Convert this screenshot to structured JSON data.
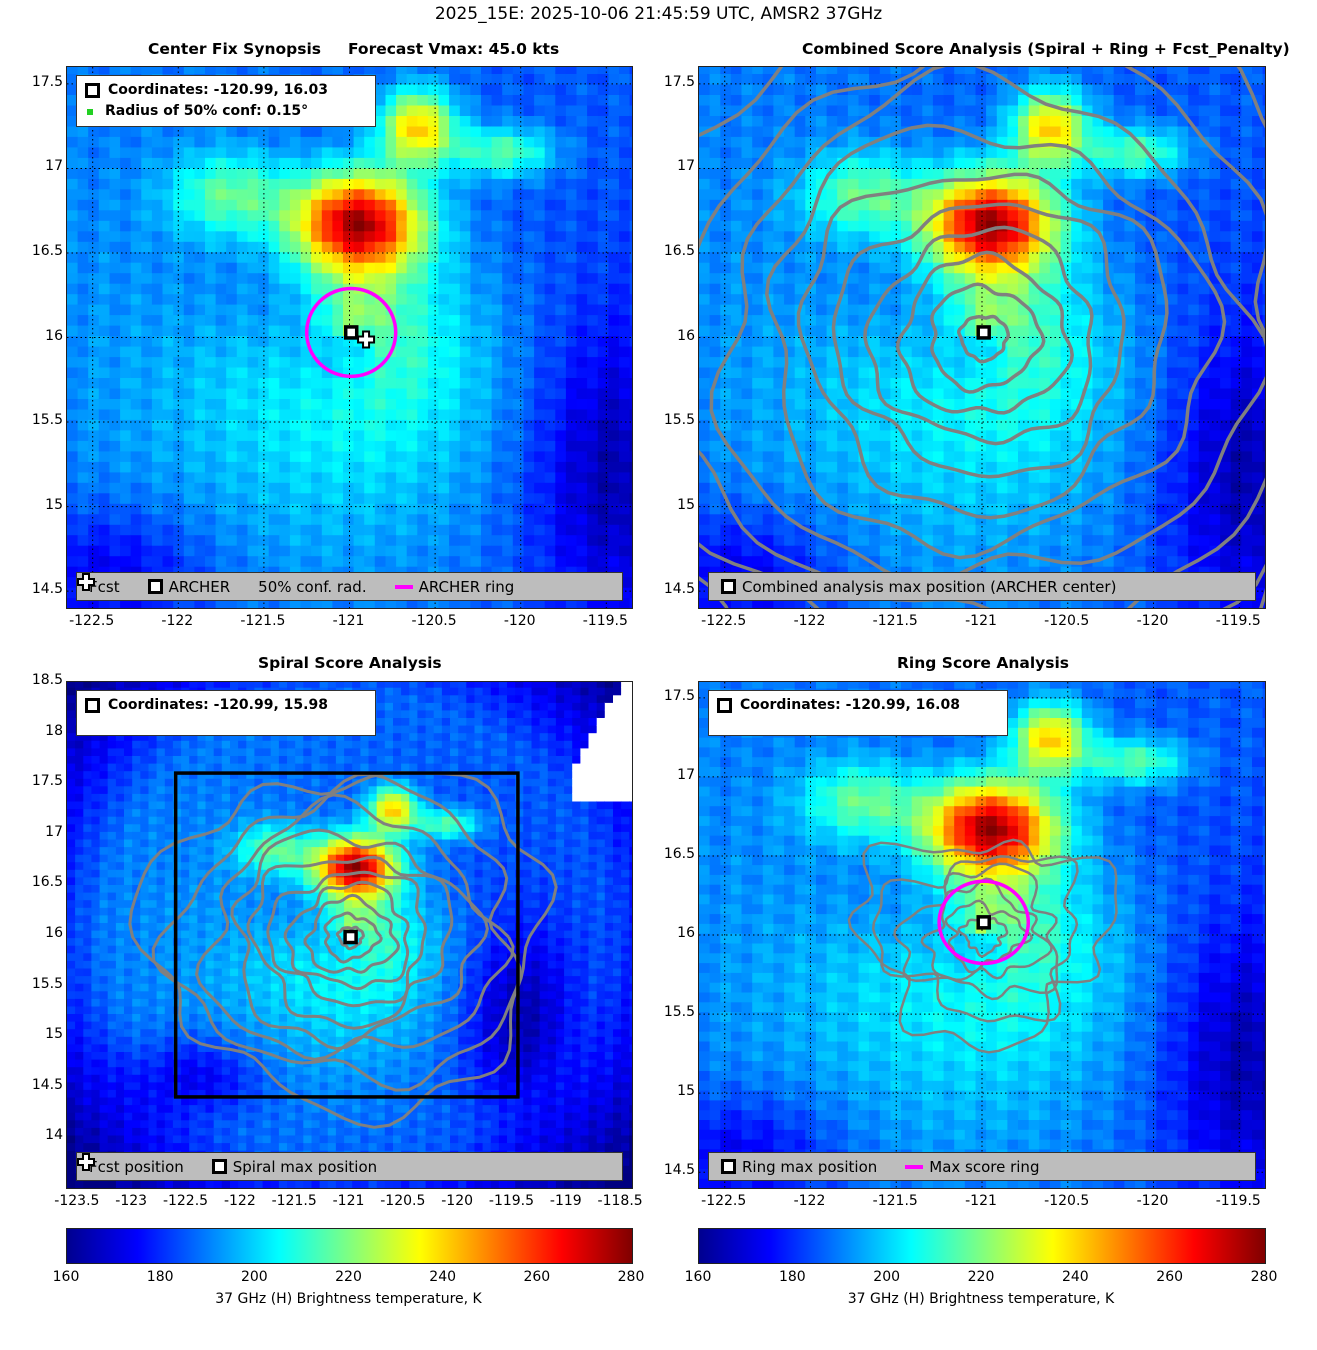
{
  "title": "2025_15E: 2025-10-06 21:45:59 UTC, AMSR2 37GHz",
  "panels": {
    "center_fix": {
      "title": "Center Fix Synopsis     Forecast Vmax: 45.0 kts",
      "info_coordinates": "Coordinates: -120.99, 16.03",
      "info_radius": "Radius of 50% conf: 0.15°",
      "legend_fcst": "Fcst",
      "legend_archer": "ARCHER",
      "legend_conf": "50% conf. rad.",
      "legend_ring": "ARCHER ring"
    },
    "combined": {
      "title": "Combined Score Analysis (Spiral + Ring + Fcst_Penalty)",
      "legend_max": "Combined analysis max position (ARCHER center)"
    },
    "spiral": {
      "title": "Spiral Score Analysis",
      "info_coordinates": "Coordinates: -120.99, 15.98",
      "legend_fcst": "Fcst position",
      "legend_max": "Spiral max position"
    },
    "ring": {
      "title": "Ring Score Analysis",
      "info_coordinates": "Coordinates: -120.99, 16.08",
      "legend_max": "Ring max position",
      "legend_ring": "Max score ring"
    }
  },
  "colorbar": {
    "label": "37 GHz (H) Brightness temperature, K",
    "ticks": [
      "160",
      "180",
      "200",
      "220",
      "240",
      "260",
      "280"
    ],
    "range": [
      160,
      280
    ],
    "colormap": "jet"
  },
  "colors": {
    "ring": "#ff00ff",
    "contour": "#808080",
    "frame": "#000000",
    "legend_bg": "#bdbdbd"
  },
  "chart_data": [
    {
      "type": "heatmap",
      "title": "Center Fix Synopsis     Forecast Vmax: 45.0 kts",
      "xlim": [
        -122.65,
        -119.35
      ],
      "ylim": [
        14.4,
        17.6
      ],
      "xticks": [
        "-122.5",
        "-122",
        "-121.5",
        "-121",
        "-120.5",
        "-120",
        "-119.5"
      ],
      "yticks": [
        "14.5",
        "15",
        "15.5",
        "16",
        "16.5",
        "17",
        "17.5"
      ],
      "grid": true,
      "archer_center": [
        -120.99,
        16.03
      ],
      "forecast_position": [
        -120.95,
        16.0
      ],
      "conf_radius_deg": 0.15,
      "ring_radius_deg": 0.26
    },
    {
      "type": "heatmap",
      "title": "Combined Score Analysis (Spiral + Ring + Fcst_Penalty)",
      "xlim": [
        -122.65,
        -119.35
      ],
      "ylim": [
        14.4,
        17.6
      ],
      "xticks": [
        "-122.5",
        "-122",
        "-121.5",
        "-121",
        "-120.5",
        "-120",
        "-119.5"
      ],
      "yticks": [
        "14.5",
        "15",
        "15.5",
        "16",
        "16.5",
        "17",
        "17.5"
      ],
      "grid": true,
      "max_position": [
        -120.99,
        16.03
      ],
      "contours": "combined score"
    },
    {
      "type": "heatmap",
      "title": "Spiral Score Analysis",
      "xlim": [
        -123.6,
        -118.4
      ],
      "ylim": [
        13.5,
        18.5
      ],
      "xticks": [
        "-123.5",
        "-123",
        "-122.5",
        "-122",
        "-121.5",
        "-121",
        "-120.5",
        "-120",
        "-119.5",
        "-119",
        "-118.5"
      ],
      "yticks": [
        "14",
        "14.5",
        "15",
        "15.5",
        "16",
        "16.5",
        "17",
        "17.5",
        "18",
        "18.5"
      ],
      "grid": false,
      "max_position": [
        -120.99,
        15.98
      ],
      "box": {
        "lon": [
          -122.6,
          -119.45
        ],
        "lat": [
          14.4,
          17.6
        ]
      },
      "contours": "spiral score"
    },
    {
      "type": "heatmap",
      "title": "Ring Score Analysis",
      "xlim": [
        -122.65,
        -119.35
      ],
      "ylim": [
        14.4,
        17.6
      ],
      "xticks": [
        "-122.5",
        "-122",
        "-121.5",
        "-121",
        "-120.5",
        "-120",
        "-119.5"
      ],
      "yticks": [
        "14.5",
        "15",
        "15.5",
        "16",
        "16.5",
        "17",
        "17.5"
      ],
      "grid": true,
      "max_position": [
        -120.99,
        16.08
      ],
      "ring_radius_deg": 0.26,
      "contours": "ring score"
    }
  ]
}
